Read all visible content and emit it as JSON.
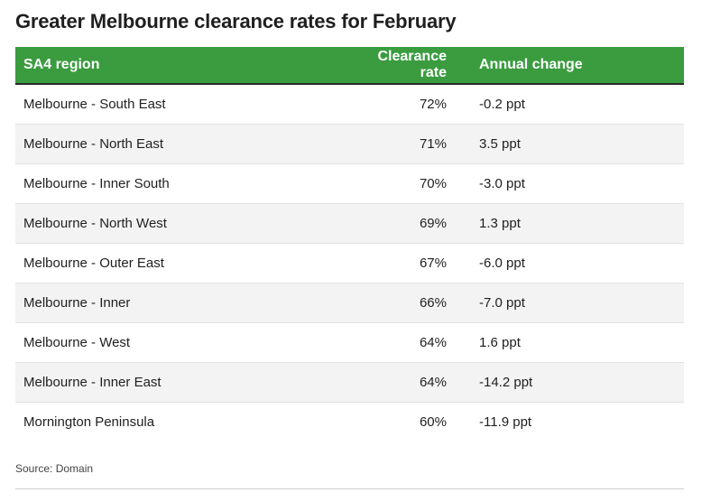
{
  "chart_data": {
    "type": "table",
    "title": "Greater Melbourne clearance rates for February",
    "columns": [
      "SA4 region",
      "Clearance rate",
      "Annual change"
    ],
    "rows": [
      {
        "region": "Melbourne - South East",
        "clearance_rate": "72%",
        "annual_change": "-0.2 ppt"
      },
      {
        "region": "Melbourne - North East",
        "clearance_rate": "71%",
        "annual_change": "3.5 ppt"
      },
      {
        "region": "Melbourne - Inner South",
        "clearance_rate": "70%",
        "annual_change": "-3.0 ppt"
      },
      {
        "region": "Melbourne - North West",
        "clearance_rate": "69%",
        "annual_change": "1.3 ppt"
      },
      {
        "region": "Melbourne - Outer East",
        "clearance_rate": "67%",
        "annual_change": "-6.0 ppt"
      },
      {
        "region": "Melbourne - Inner",
        "clearance_rate": "66%",
        "annual_change": "-7.0 ppt"
      },
      {
        "region": "Melbourne - West",
        "clearance_rate": "64%",
        "annual_change": "1.6 ppt"
      },
      {
        "region": "Melbourne - Inner East",
        "clearance_rate": "64%",
        "annual_change": "-14.2 ppt"
      },
      {
        "region": "Mornington Peninsula",
        "clearance_rate": "60%",
        "annual_change": "-11.9 ppt"
      }
    ],
    "source": "Source: Domain",
    "header_color": "#3a9c3f",
    "stripe_color": "#f3f3f3"
  }
}
